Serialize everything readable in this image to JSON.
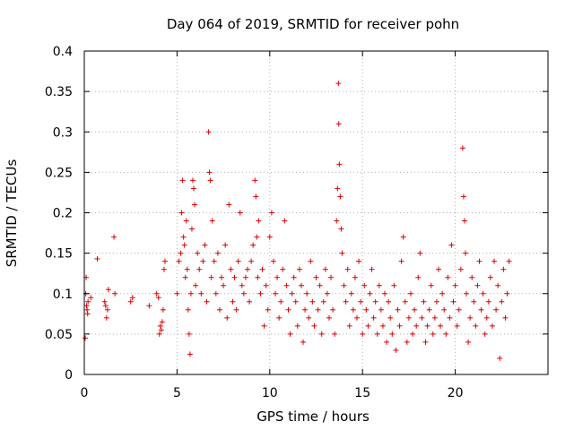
{
  "chart_data": {
    "type": "scatter",
    "title": "Day 064 of 2019, SRMTID for receiver pohn",
    "xlabel": "GPS time / hours",
    "ylabel": "SRMTID / TECUs",
    "xlim": [
      0,
      25
    ],
    "ylim": [
      0,
      0.4
    ],
    "xticks": [
      0,
      5,
      10,
      15,
      20
    ],
    "xtick_labels": [
      "0",
      "5",
      "10",
      "15",
      "20"
    ],
    "yticks": [
      0,
      0.05,
      0.1,
      0.15,
      0.2,
      0.25,
      0.3,
      0.35,
      0.4
    ],
    "ytick_labels": [
      "0",
      "0.05",
      "0.1",
      "0.15",
      "0.2",
      "0.25",
      "0.3",
      "0.35",
      "0.4"
    ],
    "grid": true,
    "marker": "+",
    "color": "#e00000",
    "series": [
      {
        "name": "SRMTID",
        "points": [
          [
            0.05,
            0.045
          ],
          [
            0.08,
            0.1
          ],
          [
            0.1,
            0.12
          ],
          [
            0.12,
            0.085
          ],
          [
            0.15,
            0.08
          ],
          [
            0.18,
            0.075
          ],
          [
            0.2,
            0.09
          ],
          [
            0.35,
            0.095
          ],
          [
            0.7,
            0.143
          ],
          [
            1.1,
            0.09
          ],
          [
            1.15,
            0.085
          ],
          [
            1.2,
            0.07
          ],
          [
            1.25,
            0.08
          ],
          [
            1.3,
            0.105
          ],
          [
            1.6,
            0.17
          ],
          [
            1.65,
            0.1
          ],
          [
            2.5,
            0.09
          ],
          [
            2.6,
            0.095
          ],
          [
            3.5,
            0.085
          ],
          [
            3.9,
            0.1
          ],
          [
            4.0,
            0.095
          ],
          [
            4.05,
            0.05
          ],
          [
            4.1,
            0.06
          ],
          [
            4.15,
            0.055
          ],
          [
            4.2,
            0.065
          ],
          [
            4.25,
            0.08
          ],
          [
            4.3,
            0.13
          ],
          [
            4.35,
            0.14
          ],
          [
            5.0,
            0.1
          ],
          [
            5.1,
            0.14
          ],
          [
            5.2,
            0.15
          ],
          [
            5.25,
            0.2
          ],
          [
            5.3,
            0.24
          ],
          [
            5.35,
            0.17
          ],
          [
            5.4,
            0.16
          ],
          [
            5.45,
            0.12
          ],
          [
            5.5,
            0.19
          ],
          [
            5.55,
            0.13
          ],
          [
            5.6,
            0.08
          ],
          [
            5.65,
            0.05
          ],
          [
            5.7,
            0.025
          ],
          [
            5.75,
            0.1
          ],
          [
            5.8,
            0.18
          ],
          [
            5.85,
            0.24
          ],
          [
            5.9,
            0.23
          ],
          [
            5.95,
            0.21
          ],
          [
            6.0,
            0.11
          ],
          [
            6.1,
            0.15
          ],
          [
            6.2,
            0.13
          ],
          [
            6.3,
            0.1
          ],
          [
            6.4,
            0.14
          ],
          [
            6.5,
            0.16
          ],
          [
            6.6,
            0.09
          ],
          [
            6.7,
            0.3
          ],
          [
            6.75,
            0.25
          ],
          [
            6.8,
            0.24
          ],
          [
            6.85,
            0.12
          ],
          [
            6.9,
            0.19
          ],
          [
            7.0,
            0.14
          ],
          [
            7.1,
            0.1
          ],
          [
            7.2,
            0.15
          ],
          [
            7.3,
            0.08
          ],
          [
            7.4,
            0.12
          ],
          [
            7.5,
            0.11
          ],
          [
            7.6,
            0.16
          ],
          [
            7.7,
            0.07
          ],
          [
            7.8,
            0.21
          ],
          [
            7.9,
            0.13
          ],
          [
            8.0,
            0.09
          ],
          [
            8.1,
            0.12
          ],
          [
            8.2,
            0.08
          ],
          [
            8.3,
            0.14
          ],
          [
            8.4,
            0.2
          ],
          [
            8.5,
            0.11
          ],
          [
            8.6,
            0.1
          ],
          [
            8.7,
            0.12
          ],
          [
            8.8,
            0.13
          ],
          [
            8.9,
            0.09
          ],
          [
            9.0,
            0.14
          ],
          [
            9.1,
            0.16
          ],
          [
            9.2,
            0.24
          ],
          [
            9.25,
            0.22
          ],
          [
            9.3,
            0.17
          ],
          [
            9.35,
            0.12
          ],
          [
            9.4,
            0.19
          ],
          [
            9.5,
            0.1
          ],
          [
            9.6,
            0.13
          ],
          [
            9.7,
            0.06
          ],
          [
            9.8,
            0.11
          ],
          [
            9.9,
            0.08
          ],
          [
            10.0,
            0.17
          ],
          [
            10.1,
            0.2
          ],
          [
            10.2,
            0.14
          ],
          [
            10.3,
            0.1
          ],
          [
            10.4,
            0.12
          ],
          [
            10.5,
            0.07
          ],
          [
            10.6,
            0.09
          ],
          [
            10.7,
            0.13
          ],
          [
            10.8,
            0.19
          ],
          [
            10.9,
            0.11
          ],
          [
            11.0,
            0.08
          ],
          [
            11.1,
            0.05
          ],
          [
            11.2,
            0.1
          ],
          [
            11.3,
            0.12
          ],
          [
            11.4,
            0.09
          ],
          [
            11.5,
            0.06
          ],
          [
            11.6,
            0.13
          ],
          [
            11.7,
            0.11
          ],
          [
            11.8,
            0.04
          ],
          [
            11.9,
            0.08
          ],
          [
            12.0,
            0.1
          ],
          [
            12.1,
            0.07
          ],
          [
            12.2,
            0.14
          ],
          [
            12.3,
            0.09
          ],
          [
            12.4,
            0.06
          ],
          [
            12.5,
            0.12
          ],
          [
            12.6,
            0.08
          ],
          [
            12.7,
            0.11
          ],
          [
            12.8,
            0.05
          ],
          [
            12.9,
            0.09
          ],
          [
            13.0,
            0.13
          ],
          [
            13.1,
            0.1
          ],
          [
            13.2,
            0.07
          ],
          [
            13.3,
            0.12
          ],
          [
            13.4,
            0.08
          ],
          [
            13.5,
            0.05
          ],
          [
            13.6,
            0.19
          ],
          [
            13.65,
            0.23
          ],
          [
            13.7,
            0.36
          ],
          [
            13.72,
            0.31
          ],
          [
            13.75,
            0.26
          ],
          [
            13.8,
            0.22
          ],
          [
            13.85,
            0.18
          ],
          [
            13.9,
            0.15
          ],
          [
            14.0,
            0.11
          ],
          [
            14.1,
            0.09
          ],
          [
            14.2,
            0.13
          ],
          [
            14.3,
            0.06
          ],
          [
            14.4,
            0.1
          ],
          [
            14.5,
            0.08
          ],
          [
            14.6,
            0.12
          ],
          [
            14.7,
            0.07
          ],
          [
            14.8,
            0.14
          ],
          [
            14.9,
            0.09
          ],
          [
            15.0,
            0.05
          ],
          [
            15.1,
            0.11
          ],
          [
            15.2,
            0.08
          ],
          [
            15.3,
            0.06
          ],
          [
            15.4,
            0.1
          ],
          [
            15.5,
            0.13
          ],
          [
            15.6,
            0.07
          ],
          [
            15.7,
            0.09
          ],
          [
            15.8,
            0.05
          ],
          [
            15.9,
            0.11
          ],
          [
            16.0,
            0.08
          ],
          [
            16.1,
            0.06
          ],
          [
            16.2,
            0.1
          ],
          [
            16.3,
            0.04
          ],
          [
            16.4,
            0.09
          ],
          [
            16.5,
            0.07
          ],
          [
            16.6,
            0.05
          ],
          [
            16.7,
            0.11
          ],
          [
            16.8,
            0.03
          ],
          [
            16.9,
            0.08
          ],
          [
            17.0,
            0.06
          ],
          [
            17.1,
            0.14
          ],
          [
            17.2,
            0.17
          ],
          [
            17.3,
            0.09
          ],
          [
            17.4,
            0.04
          ],
          [
            17.5,
            0.07
          ],
          [
            17.6,
            0.1
          ],
          [
            17.7,
            0.05
          ],
          [
            17.8,
            0.08
          ],
          [
            17.9,
            0.06
          ],
          [
            18.0,
            0.12
          ],
          [
            18.1,
            0.15
          ],
          [
            18.2,
            0.07
          ],
          [
            18.3,
            0.09
          ],
          [
            18.4,
            0.04
          ],
          [
            18.5,
            0.06
          ],
          [
            18.6,
            0.08
          ],
          [
            18.7,
            0.11
          ],
          [
            18.8,
            0.05
          ],
          [
            18.9,
            0.07
          ],
          [
            19.0,
            0.09
          ],
          [
            19.1,
            0.13
          ],
          [
            19.2,
            0.06
          ],
          [
            19.3,
            0.1
          ],
          [
            19.4,
            0.08
          ],
          [
            19.5,
            0.05
          ],
          [
            19.6,
            0.12
          ],
          [
            19.7,
            0.07
          ],
          [
            19.8,
            0.16
          ],
          [
            19.9,
            0.09
          ],
          [
            20.0,
            0.11
          ],
          [
            20.1,
            0.06
          ],
          [
            20.2,
            0.08
          ],
          [
            20.3,
            0.13
          ],
          [
            20.4,
            0.28
          ],
          [
            20.45,
            0.22
          ],
          [
            20.5,
            0.19
          ],
          [
            20.55,
            0.15
          ],
          [
            20.6,
            0.1
          ],
          [
            20.7,
            0.04
          ],
          [
            20.8,
            0.07
          ],
          [
            20.9,
            0.12
          ],
          [
            21.0,
            0.09
          ],
          [
            21.1,
            0.06
          ],
          [
            21.2,
            0.11
          ],
          [
            21.3,
            0.14
          ],
          [
            21.4,
            0.08
          ],
          [
            21.5,
            0.1
          ],
          [
            21.6,
            0.05
          ],
          [
            21.7,
            0.07
          ],
          [
            21.8,
            0.09
          ],
          [
            21.9,
            0.12
          ],
          [
            22.0,
            0.06
          ],
          [
            22.1,
            0.14
          ],
          [
            22.2,
            0.08
          ],
          [
            22.3,
            0.11
          ],
          [
            22.4,
            0.02
          ],
          [
            22.5,
            0.09
          ],
          [
            22.6,
            0.13
          ],
          [
            22.7,
            0.07
          ],
          [
            22.8,
            0.1
          ],
          [
            22.9,
            0.14
          ]
        ]
      }
    ]
  }
}
